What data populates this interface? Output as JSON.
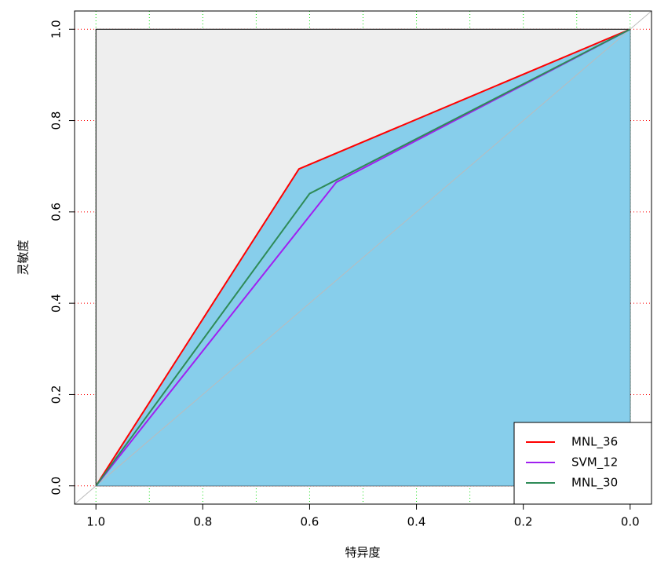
{
  "chart_data": {
    "type": "line",
    "xlabel": "特异度",
    "ylabel": "灵敏度",
    "xlim": [
      1.04,
      -0.04
    ],
    "ylim": [
      -0.04,
      1.04
    ],
    "xticks": [
      {
        "value": 1,
        "label": "1.0"
      },
      {
        "value": 0.8,
        "label": "0.8"
      },
      {
        "value": 0.6,
        "label": "0.6"
      },
      {
        "value": 0.4,
        "label": "0.4"
      },
      {
        "value": 0.2,
        "label": "0.2"
      },
      {
        "value": 0,
        "label": "0.0"
      }
    ],
    "yticks": [
      {
        "value": 0,
        "label": "0.0"
      },
      {
        "value": 0.2,
        "label": "0.2"
      },
      {
        "value": 0.4,
        "label": "0.4"
      },
      {
        "value": 0.6,
        "label": "0.6"
      },
      {
        "value": 0.8,
        "label": "0.8"
      },
      {
        "value": 1,
        "label": "1.0"
      }
    ],
    "grid": true,
    "xgrid": [
      1,
      0.9,
      0.8,
      0.7,
      0.6,
      0.5,
      0.4,
      0.3,
      0.2,
      0.1,
      0
    ],
    "xgrid_color": "#00dd00",
    "ygrid": [
      0,
      0.2,
      0.4,
      0.6,
      0.8,
      1
    ],
    "ygrid_color": "#ff0000",
    "background_color": "#eeeeee",
    "fill_color": "#87ceeb",
    "diagonal_color": "#bbbbbb",
    "legend": "bottom-right",
    "series": [
      {
        "name": "MNL_36",
        "color": "#ff0000",
        "x": [
          1,
          0.62,
          0
        ],
        "values": [
          0,
          0.694,
          1
        ]
      },
      {
        "name": "SVM_12",
        "color": "#a020f0",
        "x": [
          1,
          0.55,
          0
        ],
        "values": [
          0,
          0.665,
          1
        ]
      },
      {
        "name": "MNL_30",
        "color": "#2e8b57",
        "x": [
          1,
          0.6,
          0
        ],
        "values": [
          0,
          0.64,
          1
        ]
      }
    ]
  }
}
